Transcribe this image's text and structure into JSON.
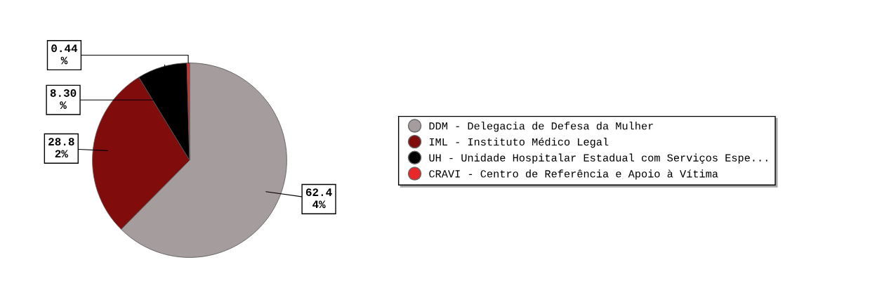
{
  "chart_data": {
    "type": "pie",
    "categories": [
      "DDM - Delegacia de Defesa da Mulher",
      "IML - Instituto Médico Legal",
      "UH - Unidade Hospitalar Estadual com Serviços Espe...",
      "CRAVI - Centro de Referência e Apoio à Vítima"
    ],
    "values": [
      62.44,
      28.82,
      8.3,
      0.44
    ],
    "colors": [
      "#a59d9d",
      "#800c0c",
      "#000000",
      "#e8272b"
    ],
    "value_labels": [
      "62.44%",
      "28.82%",
      "8.30%",
      "0.44%"
    ],
    "legend": "right"
  }
}
